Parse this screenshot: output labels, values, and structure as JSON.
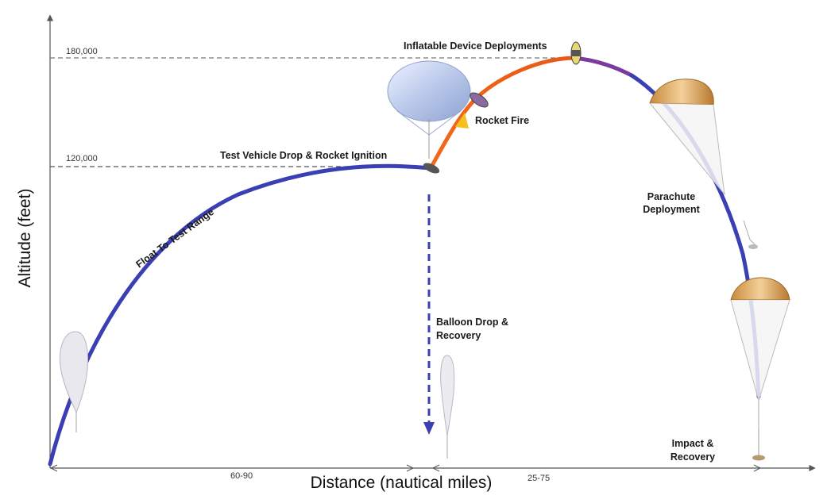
{
  "axes": {
    "y_title": "Altitude (feet)",
    "x_title": "Distance (nautical miles)",
    "y_ticks": [
      "180,000",
      "120,000"
    ],
    "x_ranges": [
      "60-90",
      "25-75"
    ]
  },
  "phases": {
    "float": "Float To Test Range",
    "drop": "Test Vehicle Drop & Rocket Ignition",
    "inflatable": "Inflatable Device Deployments",
    "rocket": "Rocket Fire",
    "parachute_line1": "Parachute",
    "parachute_line2": "Deployment",
    "balloon_line1": "Balloon Drop &",
    "balloon_line2": "Recovery",
    "impact_line1": "Impact &",
    "impact_line2": "Recovery"
  },
  "colors": {
    "trajectory": "#3a3fb4",
    "rocket": "#f26a1c",
    "coast": "#7a3aa0",
    "guide": "#555555"
  }
}
